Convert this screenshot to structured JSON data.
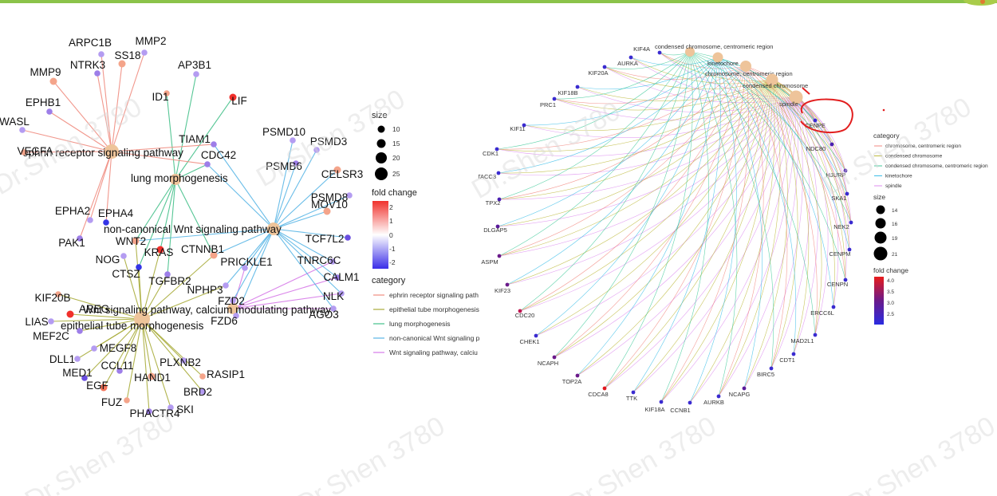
{
  "left_network": {
    "hubs": [
      {
        "name": "ephrin receptor signaling pathway",
        "color": "#f08c80",
        "pos": [
          140,
          160
        ]
      },
      {
        "name": "epithelial tube morphogenesis",
        "color": "#a9ac3b",
        "pos": [
          178,
          372
        ]
      },
      {
        "name": "lung morphogenesis",
        "color": "#44c08a",
        "pos": [
          220,
          195
        ]
      },
      {
        "name": "non-canonical Wnt signaling pathway",
        "color": "#5ab6e6",
        "pos": [
          343,
          257
        ]
      },
      {
        "name": "Wnt signaling pathway, calcium modulating pathway",
        "color": "#d67ae8",
        "pos": [
          290,
          355
        ]
      }
    ],
    "genes": [
      {
        "label": "ARPC1B",
        "fc": "#b49cf1",
        "hubs": [
          0
        ]
      },
      {
        "label": "MMP2",
        "fc": "#b49cf1",
        "hubs": [
          0
        ]
      },
      {
        "label": "NTRK3",
        "fc": "#9d7ee8",
        "hubs": [
          0
        ]
      },
      {
        "label": "SS18",
        "fc": "#f4a48a",
        "hubs": [
          0
        ]
      },
      {
        "label": "MMP9",
        "fc": "#f4a48a",
        "hubs": [
          0
        ]
      },
      {
        "label": "EPHB1",
        "fc": "#9d7ee8",
        "hubs": [
          0
        ]
      },
      {
        "label": "WASL",
        "fc": "#b49cf1",
        "hubs": [
          0
        ]
      },
      {
        "label": "VEGFA",
        "fc": "#f4a48a",
        "hubs": [
          0
        ]
      },
      {
        "label": "EPHA2",
        "fc": "#b49cf1",
        "hubs": [
          0
        ]
      },
      {
        "label": "PAK1",
        "fc": "#9d7ee8",
        "hubs": [
          0
        ]
      },
      {
        "label": "EPHA4",
        "fc": "#3434e6",
        "hubs": [
          0
        ]
      },
      {
        "label": "AP3B1",
        "fc": "#b49cf1",
        "hubs": [
          2
        ]
      },
      {
        "label": "ID1",
        "fc": "#f4a48a",
        "hubs": [
          2
        ]
      },
      {
        "label": "LIF",
        "fc": "#f1302b",
        "hubs": [
          2
        ]
      },
      {
        "label": "TIAM1",
        "fc": "#9d7ee8",
        "hubs": [
          0,
          3
        ]
      },
      {
        "label": "CDC42",
        "fc": "#9d7ee8",
        "hubs": [
          0,
          2,
          3
        ]
      },
      {
        "label": "WNT2",
        "fc": "#f4a48a",
        "hubs": [
          1,
          2,
          3
        ]
      },
      {
        "label": "NOG",
        "fc": "#b49cf1",
        "hubs": [
          1
        ]
      },
      {
        "label": "KRAS",
        "fc": "#f1302b",
        "hubs": [
          1,
          2
        ]
      },
      {
        "label": "CTSZ",
        "fc": "#3434e6",
        "hubs": [
          1,
          2
        ]
      },
      {
        "label": "TGFBR2",
        "fc": "#9d7ee8",
        "hubs": [
          1,
          2
        ]
      },
      {
        "label": "CTNNB1",
        "fc": "#f4a48a",
        "hubs": [
          1,
          2,
          3
        ]
      },
      {
        "label": "NPHP3",
        "fc": "#b49cf1",
        "hubs": [
          1,
          3
        ]
      },
      {
        "label": "PRICKLE1",
        "fc": "#b49cf1",
        "hubs": [
          3,
          4
        ]
      },
      {
        "label": "FZD2",
        "fc": "#b49cf1",
        "hubs": [
          3,
          4
        ]
      },
      {
        "label": "FZD6",
        "fc": "#b49cf1",
        "hubs": [
          3,
          4
        ]
      },
      {
        "label": "PSMD10",
        "fc": "#b49cf1",
        "hubs": [
          3
        ]
      },
      {
        "label": "PSMD3",
        "fc": "#b49cf1",
        "hubs": [
          3
        ]
      },
      {
        "label": "PSMB6",
        "fc": "#9d7ee8",
        "hubs": [
          3
        ]
      },
      {
        "label": "CELSR3",
        "fc": "#f4a48a",
        "hubs": [
          3
        ]
      },
      {
        "label": "PSMD8",
        "fc": "#b49cf1",
        "hubs": [
          3
        ]
      },
      {
        "label": "MOV10",
        "fc": "#f4a48a",
        "hubs": [
          3
        ]
      },
      {
        "label": "TCF7L2",
        "fc": "#6a4ee0",
        "hubs": [
          3
        ]
      },
      {
        "label": "TNRC6C",
        "fc": "#b49cf1",
        "hubs": [
          3,
          4
        ]
      },
      {
        "label": "CALM1",
        "fc": "#9d7ee8",
        "hubs": [
          3,
          4
        ]
      },
      {
        "label": "NLK",
        "fc": "#b49cf1",
        "hubs": [
          3,
          4
        ]
      },
      {
        "label": "AGO3",
        "fc": "#b49cf1",
        "hubs": [
          3,
          4
        ]
      },
      {
        "label": "KIF20B",
        "fc": "#f4a48a",
        "hubs": [
          1
        ]
      },
      {
        "label": "AREG",
        "fc": "#f1302b",
        "hubs": [
          1
        ]
      },
      {
        "label": "LIAS",
        "fc": "#b49cf1",
        "hubs": [
          1
        ]
      },
      {
        "label": "MEF2C",
        "fc": "#9d7ee8",
        "hubs": [
          1
        ]
      },
      {
        "label": "MEGF8",
        "fc": "#b49cf1",
        "hubs": [
          1
        ]
      },
      {
        "label": "DLL1",
        "fc": "#b49cf1",
        "hubs": [
          1
        ]
      },
      {
        "label": "CCL11",
        "fc": "#9d7ee8",
        "hubs": [
          1
        ]
      },
      {
        "label": "MED1",
        "fc": "#6a4ee0",
        "hubs": [
          1
        ]
      },
      {
        "label": "EGF",
        "fc": "#f4745a",
        "hubs": [
          1
        ]
      },
      {
        "label": "HAND1",
        "fc": "#f4a48a",
        "hubs": [
          1
        ]
      },
      {
        "label": "PLXNB2",
        "fc": "#b49cf1",
        "hubs": [
          1
        ]
      },
      {
        "label": "RASIP1",
        "fc": "#f4a48a",
        "hubs": [
          1
        ]
      },
      {
        "label": "BRD2",
        "fc": "#b49cf1",
        "hubs": [
          1
        ]
      },
      {
        "label": "FUZ",
        "fc": "#f4a48a",
        "hubs": [
          1
        ]
      },
      {
        "label": "SKI",
        "fc": "#b49cf1",
        "hubs": [
          1
        ]
      },
      {
        "label": "PHACTR4",
        "fc": "#9d7ee8",
        "hubs": [
          1
        ]
      }
    ],
    "legend": {
      "size_title": "size",
      "size_values": [
        "10",
        "15",
        "20",
        "25"
      ],
      "fc_title": "fold change",
      "fc_ticks": [
        "2",
        "1",
        "0",
        "-1",
        "-2"
      ],
      "category_title": "category",
      "categories": [
        {
          "label": "ephrin receptor signaling path",
          "color": "#f08c80"
        },
        {
          "label": "epithelial tube morphogenesis",
          "color": "#a9ac3b"
        },
        {
          "label": "lung morphogenesis",
          "color": "#44c08a"
        },
        {
          "label": "non-canonical Wnt signaling p",
          "color": "#5ab6e6"
        },
        {
          "label": "Wnt signaling pathway, calciu",
          "color": "#d67ae8"
        }
      ]
    }
  },
  "right_network": {
    "hubs": [
      {
        "name": "condensed chromosome, centromeric region",
        "color": "#2bc48f"
      },
      {
        "name": "kinetochore",
        "color": "#27b7e6"
      },
      {
        "name": "chromosome, centromeric region",
        "color": "#f07c74"
      },
      {
        "name": "condensed chromosome",
        "color": "#b7b32a"
      },
      {
        "name": "spindle",
        "color": "#d981ee"
      }
    ],
    "genes": [
      {
        "label": "KIF4A",
        "fc": "#3a2bd0"
      },
      {
        "label": "AURKA",
        "fc": "#3a2bd0"
      },
      {
        "label": "KIF20A",
        "fc": "#3a2bd0"
      },
      {
        "label": "KIF18B",
        "fc": "#3a2bd0"
      },
      {
        "label": "PRC1",
        "fc": "#3a2bd0"
      },
      {
        "label": "KIF11",
        "fc": "#3a2bd0"
      },
      {
        "label": "CDK1",
        "fc": "#3a2bd0"
      },
      {
        "label": "TACC3",
        "fc": "#3a2bd0"
      },
      {
        "label": "TPX2",
        "fc": "#4a1fb0"
      },
      {
        "label": "DLGAP5",
        "fc": "#5a1a9a"
      },
      {
        "label": "ASPM",
        "fc": "#6a1a8a"
      },
      {
        "label": "KIF23",
        "fc": "#6a1a8a"
      },
      {
        "label": "CDC20",
        "fc": "#c01650"
      },
      {
        "label": "CHEK1",
        "fc": "#3a2bd0"
      },
      {
        "label": "NCAPH",
        "fc": "#6a1a8a"
      },
      {
        "label": "TOP2A",
        "fc": "#6a1a8a"
      },
      {
        "label": "CDCA8",
        "fc": "#e0181e"
      },
      {
        "label": "TTK",
        "fc": "#3a2bd0"
      },
      {
        "label": "KIF18A",
        "fc": "#3a2bd0"
      },
      {
        "label": "CCNB1",
        "fc": "#3a2bd0"
      },
      {
        "label": "AURKB",
        "fc": "#3a2bd0"
      },
      {
        "label": "NCAPG",
        "fc": "#5a1a9a"
      },
      {
        "label": "BIRC5",
        "fc": "#3a2bd0"
      },
      {
        "label": "CDT1",
        "fc": "#3a2bd0"
      },
      {
        "label": "MAD2L1",
        "fc": "#3a2bd0"
      },
      {
        "label": "ERCC6L",
        "fc": "#3a2bd0"
      },
      {
        "label": "CENPN",
        "fc": "#3a2bd0"
      },
      {
        "label": "CENPM",
        "fc": "#3a2bd0"
      },
      {
        "label": "NEK2",
        "fc": "#3a2bd0"
      },
      {
        "label": "SKA1",
        "fc": "#3a2bd0"
      },
      {
        "label": "HJURP",
        "fc": "#4a1fb0"
      },
      {
        "label": "NDC80",
        "fc": "#4a1fb0"
      },
      {
        "label": "CENPE",
        "fc": "#3a2bd0"
      }
    ],
    "annotation": "CENPE",
    "legend": {
      "category_title": "category",
      "categories": [
        {
          "label": "chromosome, centromeric region",
          "color": "#f07c74"
        },
        {
          "label": "condensed chromosome",
          "color": "#b7b32a"
        },
        {
          "label": "condensed chromosome, centromeric region",
          "color": "#2bc48f"
        },
        {
          "label": "kinetochore",
          "color": "#27b7e6"
        },
        {
          "label": "spindle",
          "color": "#d981ee"
        }
      ],
      "size_title": "size",
      "size_values": [
        "14",
        "16",
        "19",
        "21"
      ],
      "fc_title": "fold change",
      "fc_ticks": [
        "4.0",
        "3.5",
        "3.0",
        "2.5"
      ]
    }
  },
  "watermark": "Dr.Shen 3780"
}
